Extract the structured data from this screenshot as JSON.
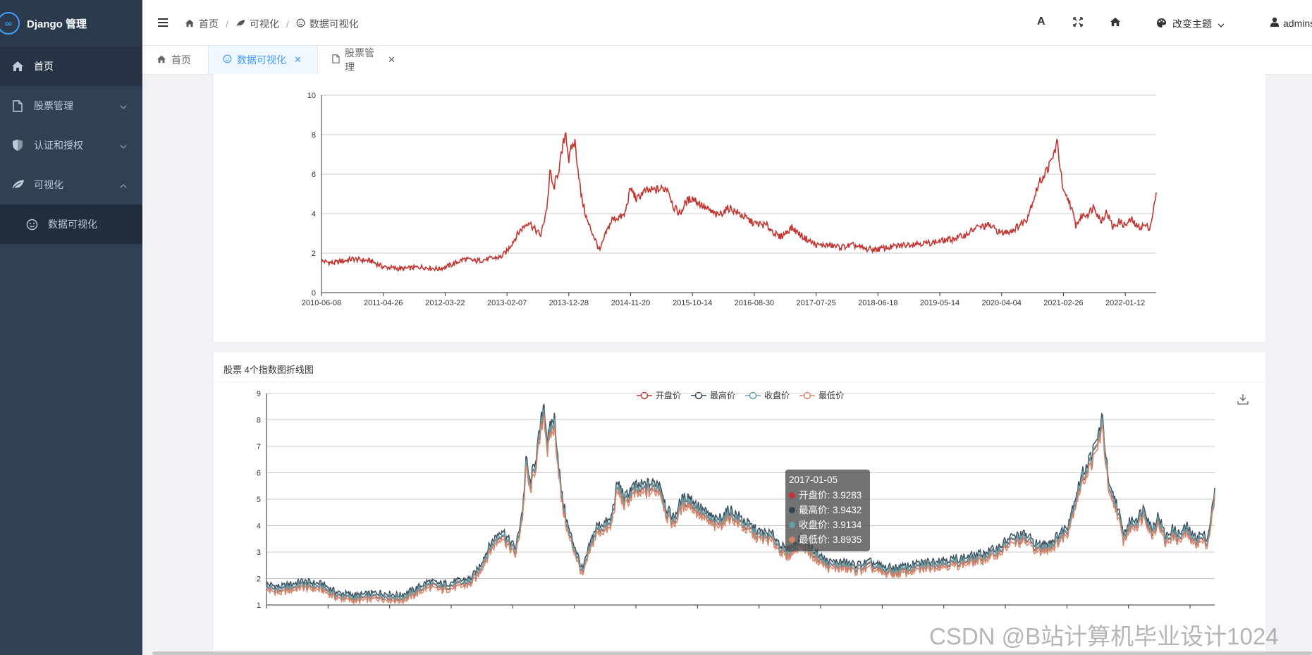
{
  "app": {
    "title": "Django 管理"
  },
  "sidebar": {
    "items": [
      {
        "label": "首页"
      },
      {
        "label": "股票管理"
      },
      {
        "label": "认证和授权"
      },
      {
        "label": "可视化"
      }
    ],
    "subitems": [
      {
        "label": "数据可视化"
      }
    ]
  },
  "header": {
    "breadcrumb": [
      "首页",
      "可视化",
      "数据可视化"
    ],
    "theme_label": "改变主题",
    "user_label": "admins"
  },
  "tabs": [
    {
      "label": "首页"
    },
    {
      "label": "数据可视化"
    },
    {
      "label": "股票管理"
    }
  ],
  "chart_data": [
    {
      "type": "line",
      "title": "",
      "ylim": [
        0,
        10
      ],
      "yticks": [
        0,
        2,
        4,
        6,
        8,
        10
      ],
      "xtick_labels": [
        "2010-06-08",
        "2011-04-26",
        "2012-03-22",
        "2013-02-07",
        "2013-12-28",
        "2014-11-20",
        "2015-10-14",
        "2016-08-30",
        "2017-07-25",
        "2018-06-18",
        "2019-05-14",
        "2020-04-04",
        "2021-02-26",
        "2022-01-12"
      ],
      "grid": true,
      "series": [
        {
          "color": "#c23531",
          "x_index": [
            0,
            0.2,
            0.5,
            0.8,
            1.0,
            1.3,
            1.6,
            1.9,
            2.1,
            2.3,
            2.5,
            2.7,
            2.9,
            3.0,
            3.1,
            3.2,
            3.35,
            3.45,
            3.55,
            3.65,
            3.7,
            3.75,
            3.85,
            3.95,
            4.0,
            4.05,
            4.1,
            4.2,
            4.3,
            4.4,
            4.5,
            4.6,
            4.7,
            4.8,
            4.9,
            5.0,
            5.1,
            5.2,
            5.4,
            5.6,
            5.7,
            5.8,
            5.9,
            6.0,
            6.2,
            6.4,
            6.6,
            6.8,
            7.0,
            7.2,
            7.4,
            7.5,
            7.6,
            7.8,
            8.0,
            8.2,
            8.4,
            8.6,
            8.8,
            9.0,
            9.2,
            9.4,
            9.6,
            9.8,
            10.0,
            10.2,
            10.4,
            10.6,
            10.8,
            11.0,
            11.2,
            11.4,
            11.6,
            11.8,
            11.9,
            12.0,
            12.1,
            12.2,
            12.3,
            12.4,
            12.5,
            12.6,
            12.7,
            12.8,
            12.9,
            13.0,
            13.1,
            13.2,
            13.3,
            13.4,
            13.5
          ],
          "values": [
            1.6,
            1.5,
            1.7,
            1.6,
            1.3,
            1.2,
            1.3,
            1.2,
            1.4,
            1.7,
            1.6,
            1.7,
            1.8,
            2.1,
            2.6,
            3.1,
            3.6,
            3.2,
            2.9,
            4.4,
            6.2,
            5.2,
            6.4,
            8.2,
            6.7,
            7.4,
            7.6,
            4.9,
            3.6,
            2.9,
            2.1,
            3.0,
            3.7,
            3.8,
            3.9,
            5.3,
            4.7,
            5.1,
            5.2,
            5.3,
            4.3,
            4.0,
            4.6,
            4.8,
            4.3,
            3.9,
            4.3,
            3.9,
            3.5,
            3.4,
            2.8,
            3.0,
            3.3,
            2.8,
            2.4,
            2.4,
            2.3,
            2.4,
            2.2,
            2.2,
            2.3,
            2.4,
            2.5,
            2.5,
            2.6,
            2.7,
            2.9,
            3.3,
            3.4,
            3.0,
            3.2,
            3.7,
            5.5,
            6.6,
            7.6,
            5.0,
            4.6,
            3.4,
            3.9,
            4.0,
            4.4,
            3.6,
            4.1,
            3.3,
            3.6,
            3.4,
            3.7,
            3.3,
            3.4,
            3.3,
            4.9
          ]
        }
      ]
    },
    {
      "type": "line",
      "title": "股票 4个指数图折线图",
      "ylim": [
        1,
        9
      ],
      "yticks": [
        1,
        2,
        3,
        4,
        5,
        6,
        7,
        8,
        9
      ],
      "grid": true,
      "legend": "top-center",
      "series": [
        {
          "name": "开盘价",
          "color": "#c23531"
        },
        {
          "name": "最高价",
          "color": "#2f4554"
        },
        {
          "name": "收盘价",
          "color": "#61a0a8"
        },
        {
          "name": "最低价",
          "color": "#d48265"
        }
      ],
      "tooltip": {
        "date": "2017-01-05",
        "rows": [
          {
            "label": "开盘价: 3.9283",
            "color": "#c23531"
          },
          {
            "label": "最高价: 3.9432",
            "color": "#2f4554"
          },
          {
            "label": "收盘价: 3.9134",
            "color": "#61a0a8"
          },
          {
            "label": "最低价: 3.8935",
            "color": "#d48265"
          }
        ]
      }
    }
  ],
  "watermark": "CSDN @B站计算机毕业设计1024"
}
